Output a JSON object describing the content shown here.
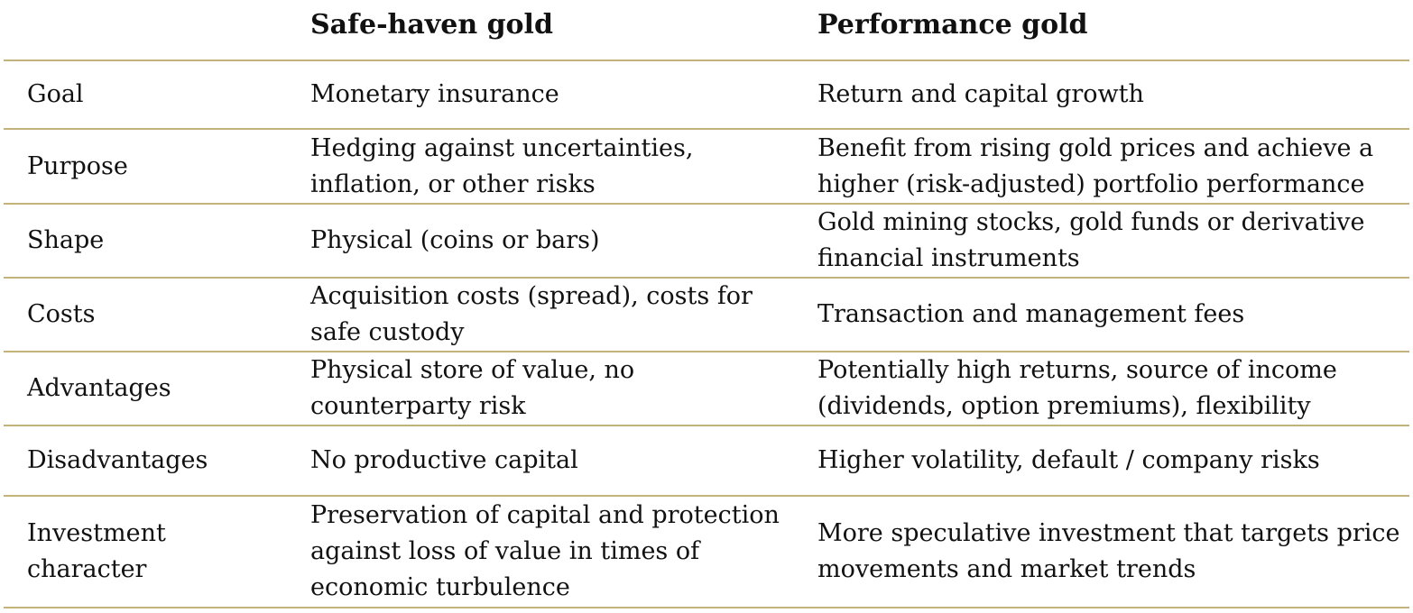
{
  "header": {
    "col_label": "",
    "col_safe": "Safe-haven gold",
    "col_perf": "Performance gold"
  },
  "rows": [
    {
      "label": "Goal",
      "safe": "Monetary insurance",
      "perf": "Return and capital growth"
    },
    {
      "label": "Purpose",
      "safe": "Hedging against uncertainties, inflation, or other risks",
      "perf": "Benefit from rising gold prices and achieve a higher (risk-adjusted) portfolio performance"
    },
    {
      "label": "Shape",
      "safe": "Physical (coins or bars)",
      "perf": "Gold mining stocks, gold funds or derivative financial instruments"
    },
    {
      "label": "Costs",
      "safe": "Acquisition costs (spread), costs for safe custody",
      "perf": "Transaction and management fees"
    },
    {
      "label": "Advantages",
      "safe": "Physical store of value, no counterparty risk",
      "perf": "Potentially high returns, source of income (dividends, option premiums), flexibility"
    },
    {
      "label": "Disadvantages",
      "safe": "No productive capital",
      "perf": "Higher volatility, default / company risks"
    },
    {
      "label": "Investment character",
      "safe": "Preservation of capital and protection against loss of value in times of economic turbulence",
      "perf": "More speculative investment that targets price movements and market trends"
    }
  ],
  "colors": {
    "rule": "#c2b27c",
    "text": "#111111"
  }
}
